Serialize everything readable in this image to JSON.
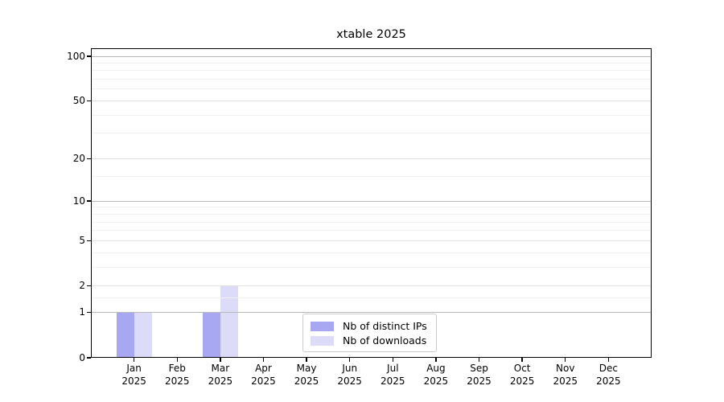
{
  "chart_data": {
    "type": "bar",
    "title": "xtable 2025",
    "categories": [
      "Jan",
      "Feb",
      "Mar",
      "Apr",
      "May",
      "Jun",
      "Jul",
      "Aug",
      "Sep",
      "Oct",
      "Nov",
      "Dec"
    ],
    "year": "2025",
    "series": [
      {
        "name": "Nb of distinct IPs",
        "color": "#a8a8f2",
        "values": [
          1,
          0,
          1,
          0,
          0,
          0,
          0,
          0,
          0,
          0,
          0,
          0
        ]
      },
      {
        "name": "Nb of downloads",
        "color": "#dcdcf8",
        "values": [
          1,
          0,
          2,
          0,
          0,
          0,
          0,
          0,
          0,
          0,
          0,
          0
        ]
      }
    ],
    "y_axis": {
      "scale": "log1p",
      "tick_labels": [
        100,
        50,
        20,
        10,
        5,
        2,
        1,
        0
      ],
      "minor_gridlines": [
        1.5,
        3,
        4,
        6,
        7,
        8,
        9,
        15,
        30,
        40,
        60,
        70,
        80,
        90
      ],
      "major_gridlines": [
        2,
        5,
        20,
        50
      ],
      "emphasized_gridlines": [
        1,
        10,
        100
      ],
      "ylim": [
        0,
        115
      ]
    },
    "legend": {
      "position": "bottom-center-inside",
      "entries": [
        "Nb of distinct IPs",
        "Nb of downloads"
      ]
    },
    "grid": "horizontal"
  },
  "colors": {
    "bar_distinct_ips": "#a8a8f2",
    "bar_downloads": "#dcdcf8",
    "grid_emphasized": "#b8b8b8",
    "grid_major": "#e0e0e0",
    "grid_minor": "#f1f1f1",
    "axis": "#000000",
    "background": "#ffffff"
  }
}
